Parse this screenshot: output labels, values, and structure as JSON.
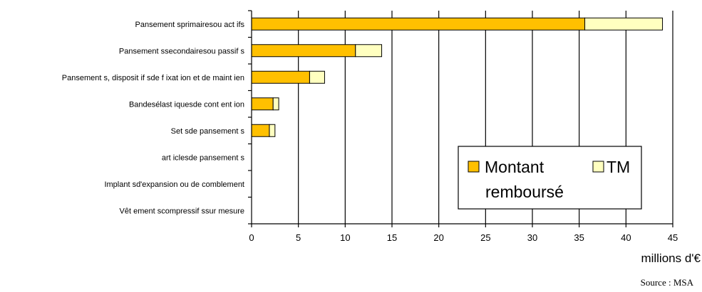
{
  "chart_data": {
    "type": "bar",
    "orientation": "horizontal",
    "stacked": true,
    "categories": [
      "Pansement sprimairesou act ifs",
      "Pansement ssecondairesou passif s",
      "Pansement s, disposit if sde f ixat ion et de maint ien",
      "Bandesélast iquesde cont ent ion",
      "Set sde pansement s",
      "art iclesde pansement s",
      "Implant sd'expansion ou de comblement",
      "Vêt ement scompressif ssur mesure"
    ],
    "series": [
      {
        "name": "Montant remboursé",
        "color": "#FFC000",
        "values": [
          35.6,
          11.1,
          6.2,
          2.3,
          1.9,
          0,
          0,
          0
        ]
      },
      {
        "name": "TM",
        "color": "#FFFFC0",
        "values": [
          8.3,
          2.8,
          1.6,
          0.6,
          0.6,
          0,
          0,
          0
        ]
      }
    ],
    "xlim": [
      0,
      45
    ],
    "xticks": [
      0,
      5,
      10,
      15,
      20,
      25,
      30,
      35,
      40,
      45
    ],
    "xlabel": "millions d'€",
    "grid": "vertical",
    "legend": "bottom-right",
    "legend_labels": {
      "s1_line1": "Montant",
      "s1_line2": "remboursé",
      "s2": "TM"
    }
  },
  "source": "Source : MSA"
}
